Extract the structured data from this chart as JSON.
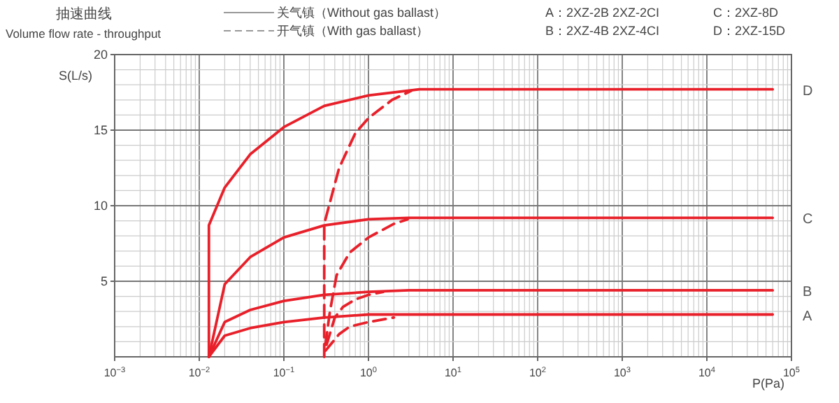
{
  "chart_data": {
    "type": "line",
    "title": "抽速曲线",
    "subtitle": "Volume flow rate - throughput",
    "xlabel": "P(Pa)",
    "ylabel": "S(L/s)",
    "annotations": [
      "关气镇（Without gas ballast）",
      "开气镇（With gas ballast）",
      "A：2XZ-2B  2XZ-2CI",
      "C：2XZ-8D",
      "B：2XZ-4B  2XZ-4CI",
      "D：2XZ-15D"
    ],
    "log": "x",
    "grid": true,
    "xlim": [
      0.001,
      100000
    ],
    "ylim": [
      0,
      20
    ],
    "xticks": [
      {
        "value": 0.001,
        "label": "10$^{−3}$"
      },
      {
        "value": 0.01,
        "label": "10$^{−2}$"
      },
      {
        "value": 0.1,
        "label": "10$^{−1}$"
      },
      {
        "value": 1,
        "label": "10$^{0}$"
      },
      {
        "value": 10,
        "label": "10$^{1}$"
      },
      {
        "value": 100,
        "label": "10$^{2}$"
      },
      {
        "value": 1000,
        "label": "10$^{3}$"
      },
      {
        "value": 10000,
        "label": "10$^{4}$"
      },
      {
        "value": 100000,
        "label": "10$^{5}$"
      }
    ],
    "yticks": [
      5,
      10,
      15,
      20
    ],
    "series": [
      {
        "name": "D",
        "color": "#e8202a",
        "line_style": "solid",
        "x": [
          0.013,
          0.013,
          0.02,
          0.04,
          0.1,
          0.3,
          1,
          4,
          60000
        ],
        "values": [
          0,
          8.7,
          11.2,
          13.4,
          15.2,
          16.6,
          17.3,
          17.7,
          17.7
        ]
      },
      {
        "name": "C",
        "color": "#e8202a",
        "line_style": "solid",
        "x": [
          0.013,
          0.02,
          0.04,
          0.1,
          0.3,
          1,
          3,
          60000
        ],
        "values": [
          0,
          4.8,
          6.6,
          7.9,
          8.7,
          9.1,
          9.2,
          9.2
        ]
      },
      {
        "name": "B",
        "color": "#e8202a",
        "line_style": "solid",
        "x": [
          0.013,
          0.02,
          0.04,
          0.1,
          0.3,
          1,
          3,
          60000
        ],
        "values": [
          0,
          2.3,
          3.1,
          3.7,
          4.1,
          4.3,
          4.4,
          4.4
        ]
      },
      {
        "name": "A",
        "color": "#e8202a",
        "line_style": "solid",
        "x": [
          0.013,
          0.02,
          0.04,
          0.1,
          0.3,
          1,
          3,
          60000
        ],
        "values": [
          0,
          1.4,
          1.9,
          2.3,
          2.6,
          2.8,
          2.8,
          2.8
        ]
      },
      {
        "color": "#e8202a",
        "line_style": "dashed",
        "x": [
          0.3,
          0.3,
          0.45,
          0.7,
          1,
          1.9,
          3.2
        ],
        "values": [
          0,
          8.8,
          12.5,
          14.8,
          15.8,
          17,
          17.6
        ]
      },
      {
        "color": "#e8202a",
        "line_style": "dashed",
        "x": [
          0.31,
          0.35,
          0.42,
          0.6,
          1,
          2,
          2.9
        ],
        "values": [
          0.8,
          3,
          5.4,
          6.9,
          7.9,
          8.8,
          9.1
        ]
      },
      {
        "color": "#e8202a",
        "line_style": "dashed",
        "x": [
          0.32,
          0.4,
          0.5,
          0.7,
          1,
          1.5
        ],
        "values": [
          0.8,
          2.6,
          3.3,
          3.8,
          4.1,
          4.3
        ]
      },
      {
        "color": "#e8202a",
        "line_style": "dashed",
        "x": [
          0.31,
          0.45,
          0.6,
          1,
          2
        ],
        "values": [
          0.4,
          1.5,
          2,
          2.3,
          2.6
        ]
      }
    ]
  }
}
